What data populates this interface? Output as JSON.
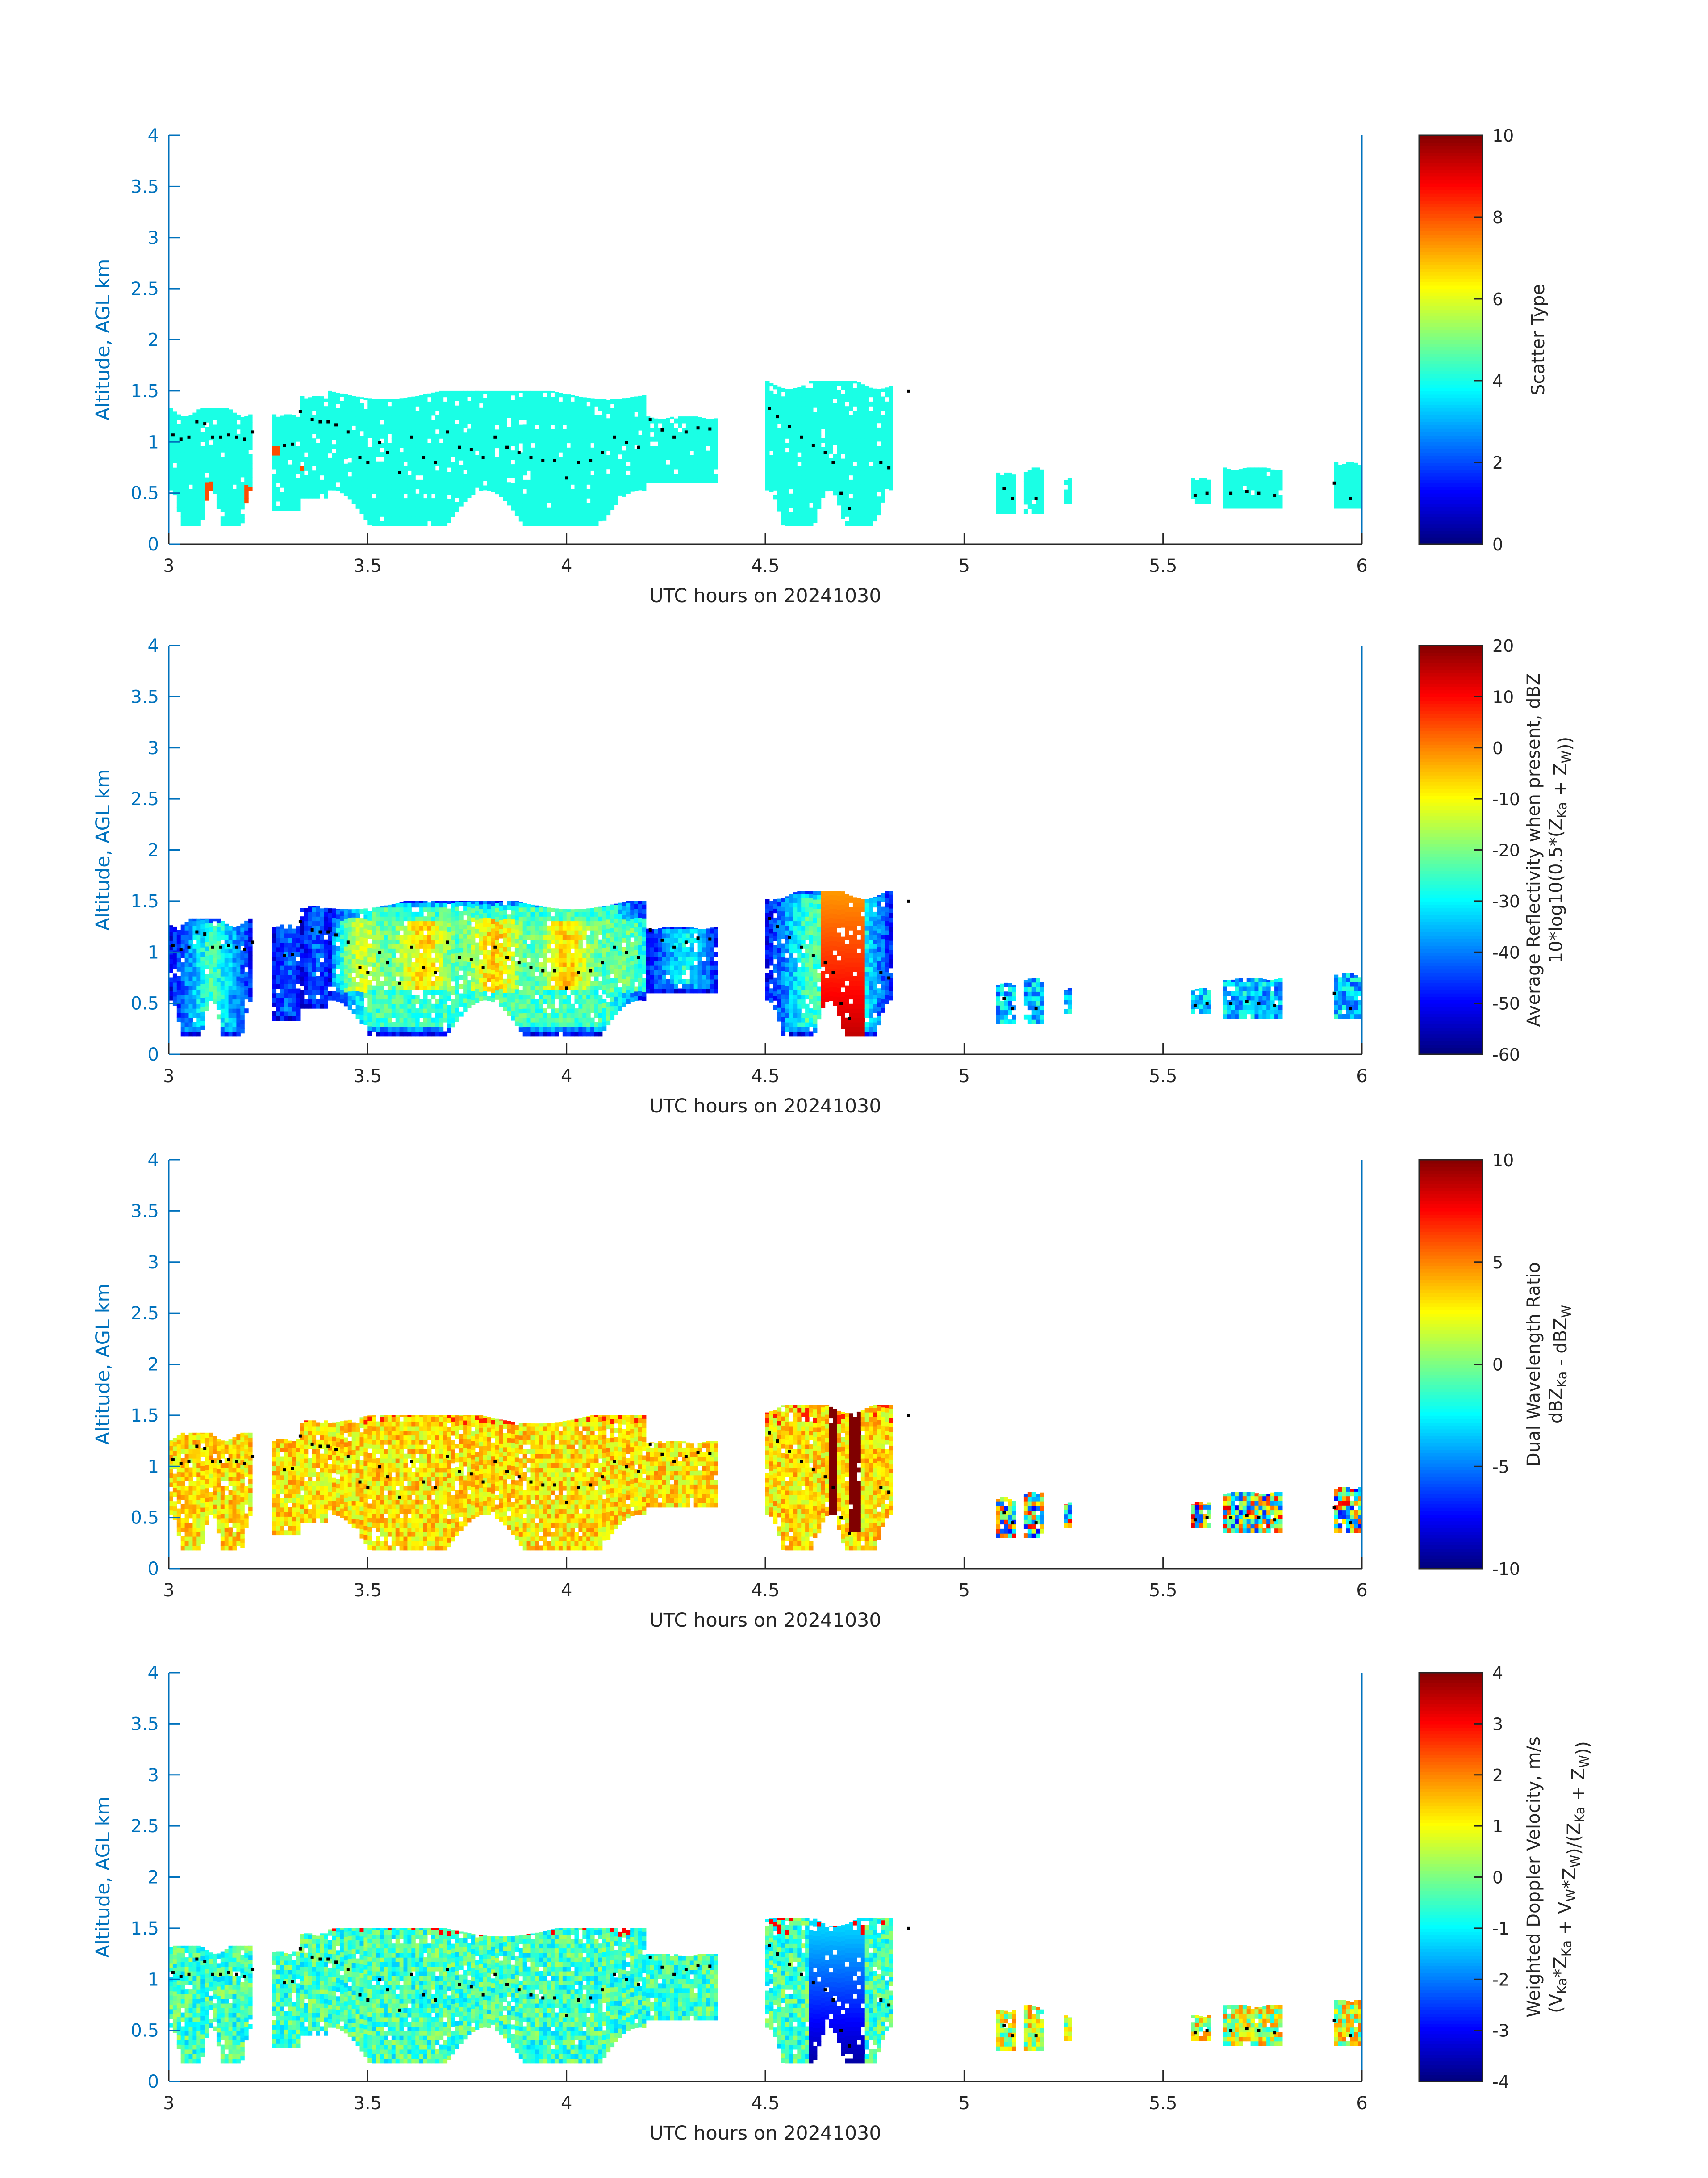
{
  "figure": {
    "panels": [
      {
        "id": "scatter-type",
        "cbar_label_lines": [
          "Scatter Type"
        ],
        "cbar_ticks": [
          "0",
          "2",
          "4",
          "6",
          "8",
          "10"
        ]
      },
      {
        "id": "reflectivity",
        "cbar_label_lines": [
          "Average Reflectivity when present, dBZ",
          "10*log10(0.5*(Z_Ka + Z_W))"
        ],
        "cbar_ticks": [
          "-60",
          "-50",
          "-40",
          "-30",
          "-20",
          "-10",
          "0",
          "10",
          "20"
        ]
      },
      {
        "id": "dwr",
        "cbar_label_lines": [
          "Dual Wavelength Ratio",
          "dBZ_Ka - dBZ_W"
        ],
        "cbar_ticks": [
          "-10",
          "-5",
          "0",
          "5",
          "10"
        ]
      },
      {
        "id": "doppler",
        "cbar_label_lines": [
          "Weighted Doppler Velocity, m/s",
          "(V_Ka*Z_Ka + V_W*Z_W)/(Z_Ka + Z_W))"
        ],
        "cbar_ticks": [
          "-4",
          "-3",
          "-2",
          "-1",
          "0",
          "1",
          "2",
          "3",
          "4"
        ]
      }
    ]
  },
  "chart_data": [
    {
      "type": "heatmap",
      "xlabel": "UTC hours on 20241030",
      "ylabel": "Altitude, AGL km",
      "xlim": [
        3,
        6
      ],
      "ylim": [
        0,
        4
      ],
      "x_ticks": [
        "3",
        "3.5",
        "4",
        "4.5",
        "5",
        "5.5",
        "6"
      ],
      "y_ticks": [
        "0",
        "0.5",
        "1",
        "1.5",
        "2",
        "2.5",
        "3",
        "3.5",
        "4"
      ],
      "colorbar_label": "Scatter Type",
      "colorbar_range": [
        0,
        10
      ],
      "colormap": "jet",
      "field": "scatter",
      "dominant_value": 4,
      "notes_values": {
        "cyan_regions": 4,
        "orange_red_spots": 8
      }
    },
    {
      "type": "heatmap",
      "xlabel": "UTC hours on 20241030",
      "ylabel": "Altitude, AGL km",
      "xlim": [
        3,
        6
      ],
      "ylim": [
        0,
        4
      ],
      "x_ticks": [
        "3",
        "3.5",
        "4",
        "4.5",
        "5",
        "5.5",
        "6"
      ],
      "y_ticks": [
        "0",
        "0.5",
        "1",
        "1.5",
        "2",
        "2.5",
        "3",
        "3.5",
        "4"
      ],
      "colorbar_label": "Average Reflectivity when present, dBZ",
      "colorbar_range": [
        -60,
        20
      ],
      "colormap": "jet",
      "field": "reflectivity"
    },
    {
      "type": "heatmap",
      "xlabel": "UTC hours on 20241030",
      "ylabel": "Altitude, AGL km",
      "xlim": [
        3,
        6
      ],
      "ylim": [
        0,
        4
      ],
      "x_ticks": [
        "3",
        "3.5",
        "4",
        "4.5",
        "5",
        "5.5",
        "6"
      ],
      "y_ticks": [
        "0",
        "0.5",
        "1",
        "1.5",
        "2",
        "2.5",
        "3",
        "3.5",
        "4"
      ],
      "colorbar_label": "Dual Wavelength Ratio",
      "colorbar_range": [
        -10,
        10
      ],
      "colormap": "jet",
      "field": "dwr"
    },
    {
      "type": "heatmap",
      "xlabel": "UTC hours on 20241030",
      "ylabel": "Altitude, AGL km",
      "xlim": [
        3,
        6
      ],
      "ylim": [
        0,
        4
      ],
      "x_ticks": [
        "3",
        "3.5",
        "4",
        "4.5",
        "5",
        "5.5",
        "6"
      ],
      "y_ticks": [
        "0",
        "0.5",
        "1",
        "1.5",
        "2",
        "2.5",
        "3",
        "3.5",
        "4"
      ],
      "colorbar_label": "Weighted Doppler Velocity, m/s",
      "colorbar_range": [
        -4,
        4
      ],
      "colormap": "jet",
      "field": "doppler"
    }
  ],
  "cloud_segments": [
    {
      "t0": 3.0,
      "t1": 3.21,
      "base": 0.18,
      "top": 1.33
    },
    {
      "t0": 3.26,
      "t1": 3.33,
      "base": 0.33,
      "top": 1.27
    },
    {
      "t0": 3.33,
      "t1": 3.4,
      "base": 0.45,
      "top": 1.45
    },
    {
      "t0": 3.4,
      "t1": 4.2,
      "base": 0.18,
      "top": 1.5
    },
    {
      "t0": 4.2,
      "t1": 4.38,
      "base": 0.6,
      "top": 1.25
    },
    {
      "t0": 4.5,
      "t1": 4.82,
      "base": 0.18,
      "top": 1.6
    },
    {
      "t0": 5.08,
      "t1": 5.13,
      "base": 0.3,
      "top": 0.7
    },
    {
      "t0": 5.15,
      "t1": 5.2,
      "base": 0.3,
      "top": 0.75
    },
    {
      "t0": 5.25,
      "t1": 5.27,
      "base": 0.4,
      "top": 0.65
    },
    {
      "t0": 5.57,
      "t1": 5.62,
      "base": 0.4,
      "top": 0.65
    },
    {
      "t0": 5.65,
      "t1": 5.8,
      "base": 0.35,
      "top": 0.75
    },
    {
      "t0": 5.93,
      "t1": 6.0,
      "base": 0.35,
      "top": 0.8
    }
  ],
  "marker_points": [
    [
      3.01,
      1.07
    ],
    [
      3.03,
      1.03
    ],
    [
      3.05,
      1.05
    ],
    [
      3.07,
      1.2
    ],
    [
      3.09,
      1.18
    ],
    [
      3.11,
      1.05
    ],
    [
      3.13,
      1.05
    ],
    [
      3.15,
      1.07
    ],
    [
      3.17,
      1.05
    ],
    [
      3.19,
      1.03
    ],
    [
      3.21,
      1.1
    ],
    [
      3.29,
      0.97
    ],
    [
      3.31,
      0.98
    ],
    [
      3.33,
      1.3
    ],
    [
      3.36,
      1.22
    ],
    [
      3.38,
      1.2
    ],
    [
      3.4,
      1.2
    ],
    [
      3.42,
      1.17
    ],
    [
      3.45,
      1.1
    ],
    [
      3.48,
      0.85
    ],
    [
      3.5,
      0.8
    ],
    [
      3.53,
      1.0
    ],
    [
      3.55,
      0.9
    ],
    [
      3.58,
      0.7
    ],
    [
      3.61,
      1.05
    ],
    [
      3.64,
      0.85
    ],
    [
      3.67,
      0.8
    ],
    [
      3.7,
      1.1
    ],
    [
      3.73,
      0.95
    ],
    [
      3.76,
      0.93
    ],
    [
      3.79,
      0.85
    ],
    [
      3.82,
      1.05
    ],
    [
      3.85,
      0.95
    ],
    [
      3.88,
      0.9
    ],
    [
      3.91,
      0.85
    ],
    [
      3.94,
      0.82
    ],
    [
      3.97,
      0.82
    ],
    [
      4.0,
      0.65
    ],
    [
      4.03,
      0.8
    ],
    [
      4.06,
      0.82
    ],
    [
      4.09,
      0.9
    ],
    [
      4.12,
      1.05
    ],
    [
      4.15,
      1.0
    ],
    [
      4.18,
      0.95
    ],
    [
      4.21,
      1.22
    ],
    [
      4.24,
      1.12
    ],
    [
      4.27,
      1.05
    ],
    [
      4.3,
      1.1
    ],
    [
      4.33,
      1.14
    ],
    [
      4.36,
      1.13
    ],
    [
      4.51,
      1.33
    ],
    [
      4.53,
      1.25
    ],
    [
      4.56,
      1.15
    ],
    [
      4.59,
      1.05
    ],
    [
      4.62,
      0.97
    ],
    [
      4.65,
      0.9
    ],
    [
      4.67,
      0.8
    ],
    [
      4.69,
      0.5
    ],
    [
      4.71,
      0.35
    ],
    [
      4.79,
      0.8
    ],
    [
      4.81,
      0.75
    ],
    [
      4.86,
      1.5
    ],
    [
      5.1,
      0.55
    ],
    [
      5.12,
      0.45
    ],
    [
      5.18,
      0.45
    ],
    [
      5.58,
      0.48
    ],
    [
      5.61,
      0.5
    ],
    [
      5.67,
      0.5
    ],
    [
      5.71,
      0.52
    ],
    [
      5.74,
      0.5
    ],
    [
      5.78,
      0.48
    ],
    [
      5.93,
      0.6
    ],
    [
      5.97,
      0.45
    ]
  ]
}
